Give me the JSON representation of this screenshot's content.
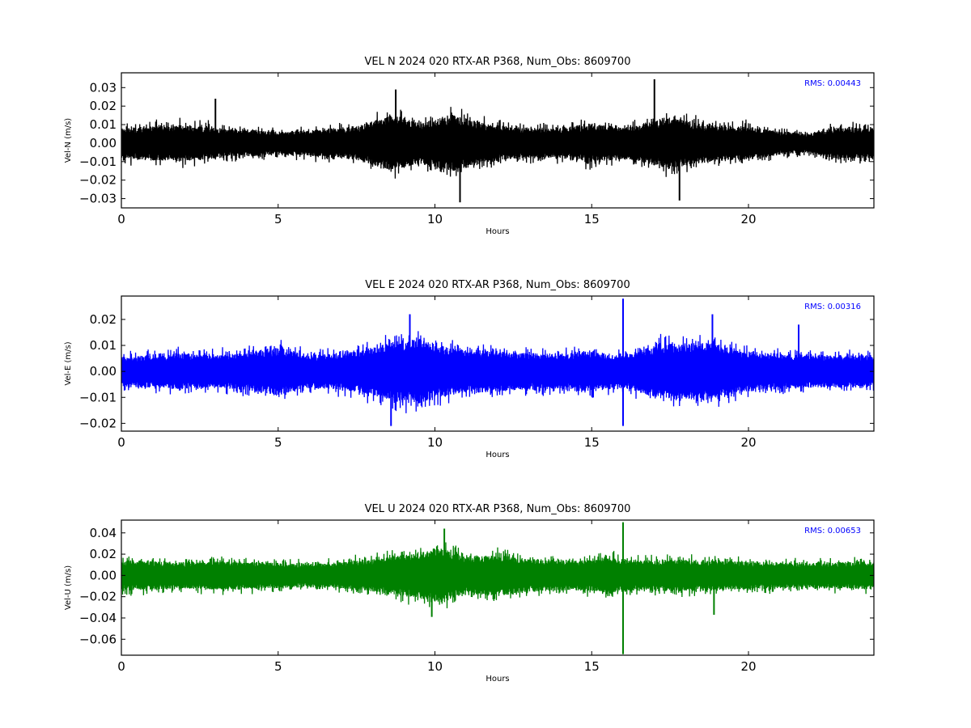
{
  "chart_data": [
    {
      "type": "line",
      "title": "VEL N 2024 020 RTX-AR  P368, Num_Obs: 8609700",
      "xlabel": "Hours",
      "ylabel": "Vel-N (m/s)",
      "xlim": [
        0,
        24
      ],
      "ylim": [
        -0.035,
        0.038
      ],
      "xticks": [
        0,
        5,
        10,
        15,
        20
      ],
      "xtick_labels": [
        "0",
        "5",
        "10",
        "15",
        "20"
      ],
      "yticks": [
        -0.03,
        -0.02,
        -0.01,
        0.0,
        0.01,
        0.02,
        0.03
      ],
      "ytick_labels": [
        "−0.03",
        "−0.02",
        "−0.01",
        "0.00",
        "0.01",
        "0.02",
        "0.03"
      ],
      "grid": false,
      "color": "#000000",
      "annotation": "RMS:  0.00443",
      "series": [
        {
          "x_range": [
            0,
            24
          ],
          "rms": 0.00443,
          "envelope": [
            [
              0,
              0.012
            ],
            [
              2,
              0.014
            ],
            [
              3.5,
              0.011
            ],
            [
              5,
              0.009
            ],
            [
              6,
              0.01
            ],
            [
              7.5,
              0.013
            ],
            [
              8.7,
              0.022
            ],
            [
              9.5,
              0.015
            ],
            [
              10.5,
              0.022
            ],
            [
              11.5,
              0.016
            ],
            [
              12.5,
              0.012
            ],
            [
              14,
              0.012
            ],
            [
              15,
              0.015
            ],
            [
              16,
              0.012
            ],
            [
              17.5,
              0.02
            ],
            [
              18.5,
              0.015
            ],
            [
              20,
              0.013
            ],
            [
              21,
              0.009
            ],
            [
              22,
              0.008
            ],
            [
              23,
              0.013
            ],
            [
              24,
              0.012
            ]
          ],
          "spikes": [
            [
              17.0,
              0.0345
            ],
            [
              10.8,
              -0.032
            ],
            [
              17.8,
              -0.031
            ],
            [
              8.75,
              0.029
            ],
            [
              3.0,
              0.024
            ]
          ]
        }
      ]
    },
    {
      "type": "line",
      "title": "VEL E 2024 020 RTX-AR  P368, Num_Obs: 8609700",
      "xlabel": "Hours",
      "ylabel": "Vel-E (m/s)",
      "xlim": [
        0,
        24
      ],
      "ylim": [
        -0.023,
        0.029
      ],
      "xticks": [
        0,
        5,
        10,
        15,
        20
      ],
      "xtick_labels": [
        "0",
        "5",
        "10",
        "15",
        "20"
      ],
      "yticks": [
        -0.02,
        -0.01,
        0.0,
        0.01,
        0.02
      ],
      "ytick_labels": [
        "−0.02",
        "−0.01",
        "0.00",
        "0.01",
        "0.02"
      ],
      "grid": false,
      "color": "#0000ff",
      "annotation": "RMS:  0.00316",
      "series": [
        {
          "x_range": [
            0,
            24
          ],
          "rms": 0.00316,
          "envelope": [
            [
              0,
              0.008
            ],
            [
              2,
              0.01
            ],
            [
              3,
              0.009
            ],
            [
              4,
              0.011
            ],
            [
              5,
              0.013
            ],
            [
              6,
              0.009
            ],
            [
              7.5,
              0.011
            ],
            [
              8.8,
              0.017
            ],
            [
              9.5,
              0.018
            ],
            [
              10.5,
              0.013
            ],
            [
              12,
              0.011
            ],
            [
              13,
              0.01
            ],
            [
              14,
              0.01
            ],
            [
              15,
              0.011
            ],
            [
              16,
              0.009
            ],
            [
              17.2,
              0.015
            ],
            [
              18.8,
              0.016
            ],
            [
              20,
              0.011
            ],
            [
              22,
              0.009
            ],
            [
              24,
              0.009
            ]
          ],
          "spikes": [
            [
              16.0,
              0.028
            ],
            [
              16.0,
              -0.021
            ],
            [
              8.6,
              -0.021
            ],
            [
              18.85,
              0.022
            ],
            [
              9.2,
              0.022
            ],
            [
              21.6,
              0.018
            ]
          ]
        }
      ]
    },
    {
      "type": "line",
      "title": "VEL U 2024 020 RTX-AR  P368, Num_Obs: 8609700",
      "xlabel": "Hours",
      "ylabel": "Vel-U (m/s)",
      "xlim": [
        0,
        24
      ],
      "ylim": [
        -0.075,
        0.052
      ],
      "xticks": [
        0,
        5,
        10,
        15,
        20
      ],
      "xtick_labels": [
        "0",
        "5",
        "10",
        "15",
        "20"
      ],
      "yticks": [
        -0.06,
        -0.04,
        -0.02,
        0.0,
        0.02,
        0.04
      ],
      "ytick_labels": [
        "−0.06",
        "−0.04",
        "−0.02",
        "0.00",
        "0.02",
        "0.04"
      ],
      "grid": false,
      "color": "#008000",
      "annotation": "RMS:  0.00653",
      "series": [
        {
          "x_range": [
            0,
            24
          ],
          "rms": 0.00653,
          "envelope": [
            [
              0,
              0.02
            ],
            [
              2,
              0.018
            ],
            [
              3.5,
              0.02
            ],
            [
              5,
              0.017
            ],
            [
              6.5,
              0.016
            ],
            [
              8,
              0.022
            ],
            [
              9,
              0.028
            ],
            [
              10.2,
              0.037
            ],
            [
              11,
              0.025
            ],
            [
              12,
              0.028
            ],
            [
              13,
              0.022
            ],
            [
              14.5,
              0.02
            ],
            [
              15.5,
              0.024
            ],
            [
              16.5,
              0.02
            ],
            [
              18,
              0.022
            ],
            [
              19,
              0.02
            ],
            [
              20,
              0.018
            ],
            [
              21.5,
              0.017
            ],
            [
              23,
              0.018
            ],
            [
              24,
              0.019
            ]
          ],
          "spikes": [
            [
              16.0,
              0.05
            ],
            [
              16.0,
              -0.074
            ],
            [
              10.3,
              0.044
            ],
            [
              18.9,
              -0.037
            ],
            [
              9.9,
              -0.039
            ]
          ]
        }
      ]
    }
  ]
}
